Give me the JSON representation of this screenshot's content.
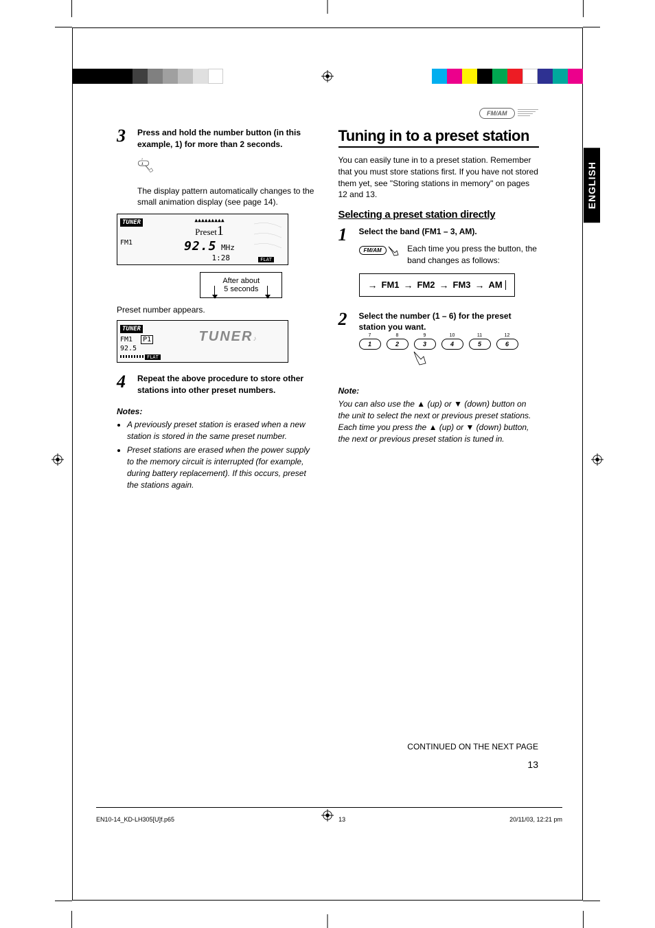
{
  "header_button": "FM/AM",
  "lang_tab": "ENGLISH",
  "color_bar_left": [
    "#000000",
    "#000000",
    "#000000",
    "#000000",
    "#404040",
    "#808080",
    "#a0a0a0",
    "#c0c0c0",
    "#e0e0e0",
    "#ffffff"
  ],
  "color_bar_right": [
    "#00aeef",
    "#ec008c",
    "#fff200",
    "#000000",
    "#00a651",
    "#ed1c24",
    "#ffffff",
    "#2e3192",
    "#00a99d",
    "#ec008c"
  ],
  "left": {
    "step3_num": "3",
    "step3_text": "Press and hold the number button (in this example, 1) for more than 2 seconds.",
    "step3_body": "The display pattern automatically changes to the small animation display (see page 14).",
    "display1": {
      "tuner": "TUNER",
      "band": "FM1",
      "preset": "Preset1",
      "freq": "92.5",
      "unit": "MHz",
      "time": "1:28",
      "flat": "FLAT"
    },
    "after_box_l1": "After about",
    "after_box_l2": "5 seconds",
    "preset_caption": "Preset number appears.",
    "display2": {
      "tuner": "TUNER",
      "band": "FM1",
      "p": "P1",
      "freq": "92.5",
      "big": "TUNER",
      "flat": "FLAT"
    },
    "step4_num": "4",
    "step4_text": "Repeat the above procedure to store other stations into other preset numbers.",
    "notes_hdr": "Notes:",
    "note1": "A previously preset station is erased when a new station is stored in the same preset number.",
    "note2": "Preset stations are erased when the power supply to the memory circuit is interrupted (for example, during battery replacement). If this occurs, preset the stations again."
  },
  "right": {
    "title": "Tuning in to a preset station",
    "intro": "You can easily tune in to a preset station. Remember that you must store stations first. If you have not stored them yet, see \"Storing stations in memory\" on pages 12 and 13.",
    "subtitle": "Selecting a preset station directly",
    "step1_num": "1",
    "step1_text": "Select the band (FM1 – 3, AM).",
    "fm_am": "FM/AM",
    "step1_body": "Each time you press the button, the band changes as follows:",
    "bands": [
      "FM1",
      "FM2",
      "FM3",
      "AM"
    ],
    "step2_num": "2",
    "step2_text": "Select the number (1 – 6) for the preset station you want.",
    "buttons_top": [
      "7",
      "8",
      "9",
      "10",
      "11",
      "12"
    ],
    "buttons": [
      "1",
      "2",
      "3",
      "4",
      "5",
      "6"
    ],
    "note_hdr": "Note:",
    "note_body": "You can also use the ▲ (up) or ▼ (down) button on the unit to select the next or previous preset stations. Each time you press the ▲ (up) or ▼ (down) button, the next or previous preset station is tuned in."
  },
  "continued": "CONTINUED ON THE NEXT PAGE",
  "page_num": "13",
  "footer": {
    "file": "EN10-14_KD-LH305[U]f.p65",
    "pg": "13",
    "date": "20/11/03, 12:21 pm"
  }
}
